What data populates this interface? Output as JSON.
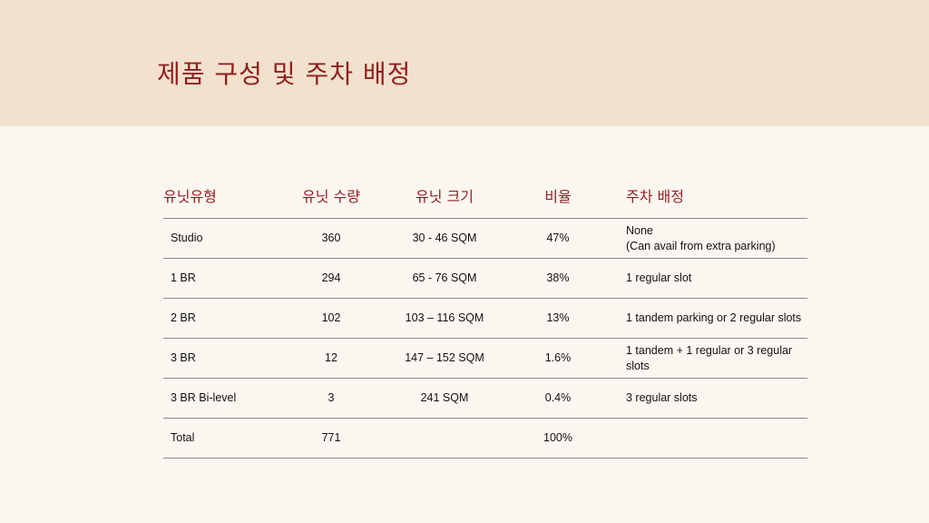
{
  "slide": {
    "title": "제품 구성 및 주차 배정"
  },
  "table": {
    "headers": [
      "유닛유형",
      "유닛 수량",
      "유닛 크기",
      "비율",
      "주차 배정"
    ],
    "rows": [
      {
        "type": "Studio",
        "qty": "360",
        "size": "30 - 46 SQM",
        "ratio": "47%",
        "parking": "None\n(Can avail from extra parking)"
      },
      {
        "type": "1 BR",
        "qty": "294",
        "size": "65 - 76 SQM",
        "ratio": "38%",
        "parking": "1 regular slot"
      },
      {
        "type": "2 BR",
        "qty": "102",
        "size": "103 – 116 SQM",
        "ratio": "13%",
        "parking": "1 tandem parking or 2 regular slots"
      },
      {
        "type": "3 BR",
        "qty": "12",
        "size": "147 – 152 SQM",
        "ratio": "1.6%",
        "parking": "1 tandem + 1 regular or 3 regular slots"
      },
      {
        "type": "3 BR Bi-level",
        "qty": "3",
        "size": "241 SQM",
        "ratio": "0.4%",
        "parking": "3 regular slots"
      },
      {
        "type": "Total",
        "qty": "771",
        "size": "",
        "ratio": "100%",
        "parking": ""
      }
    ]
  }
}
